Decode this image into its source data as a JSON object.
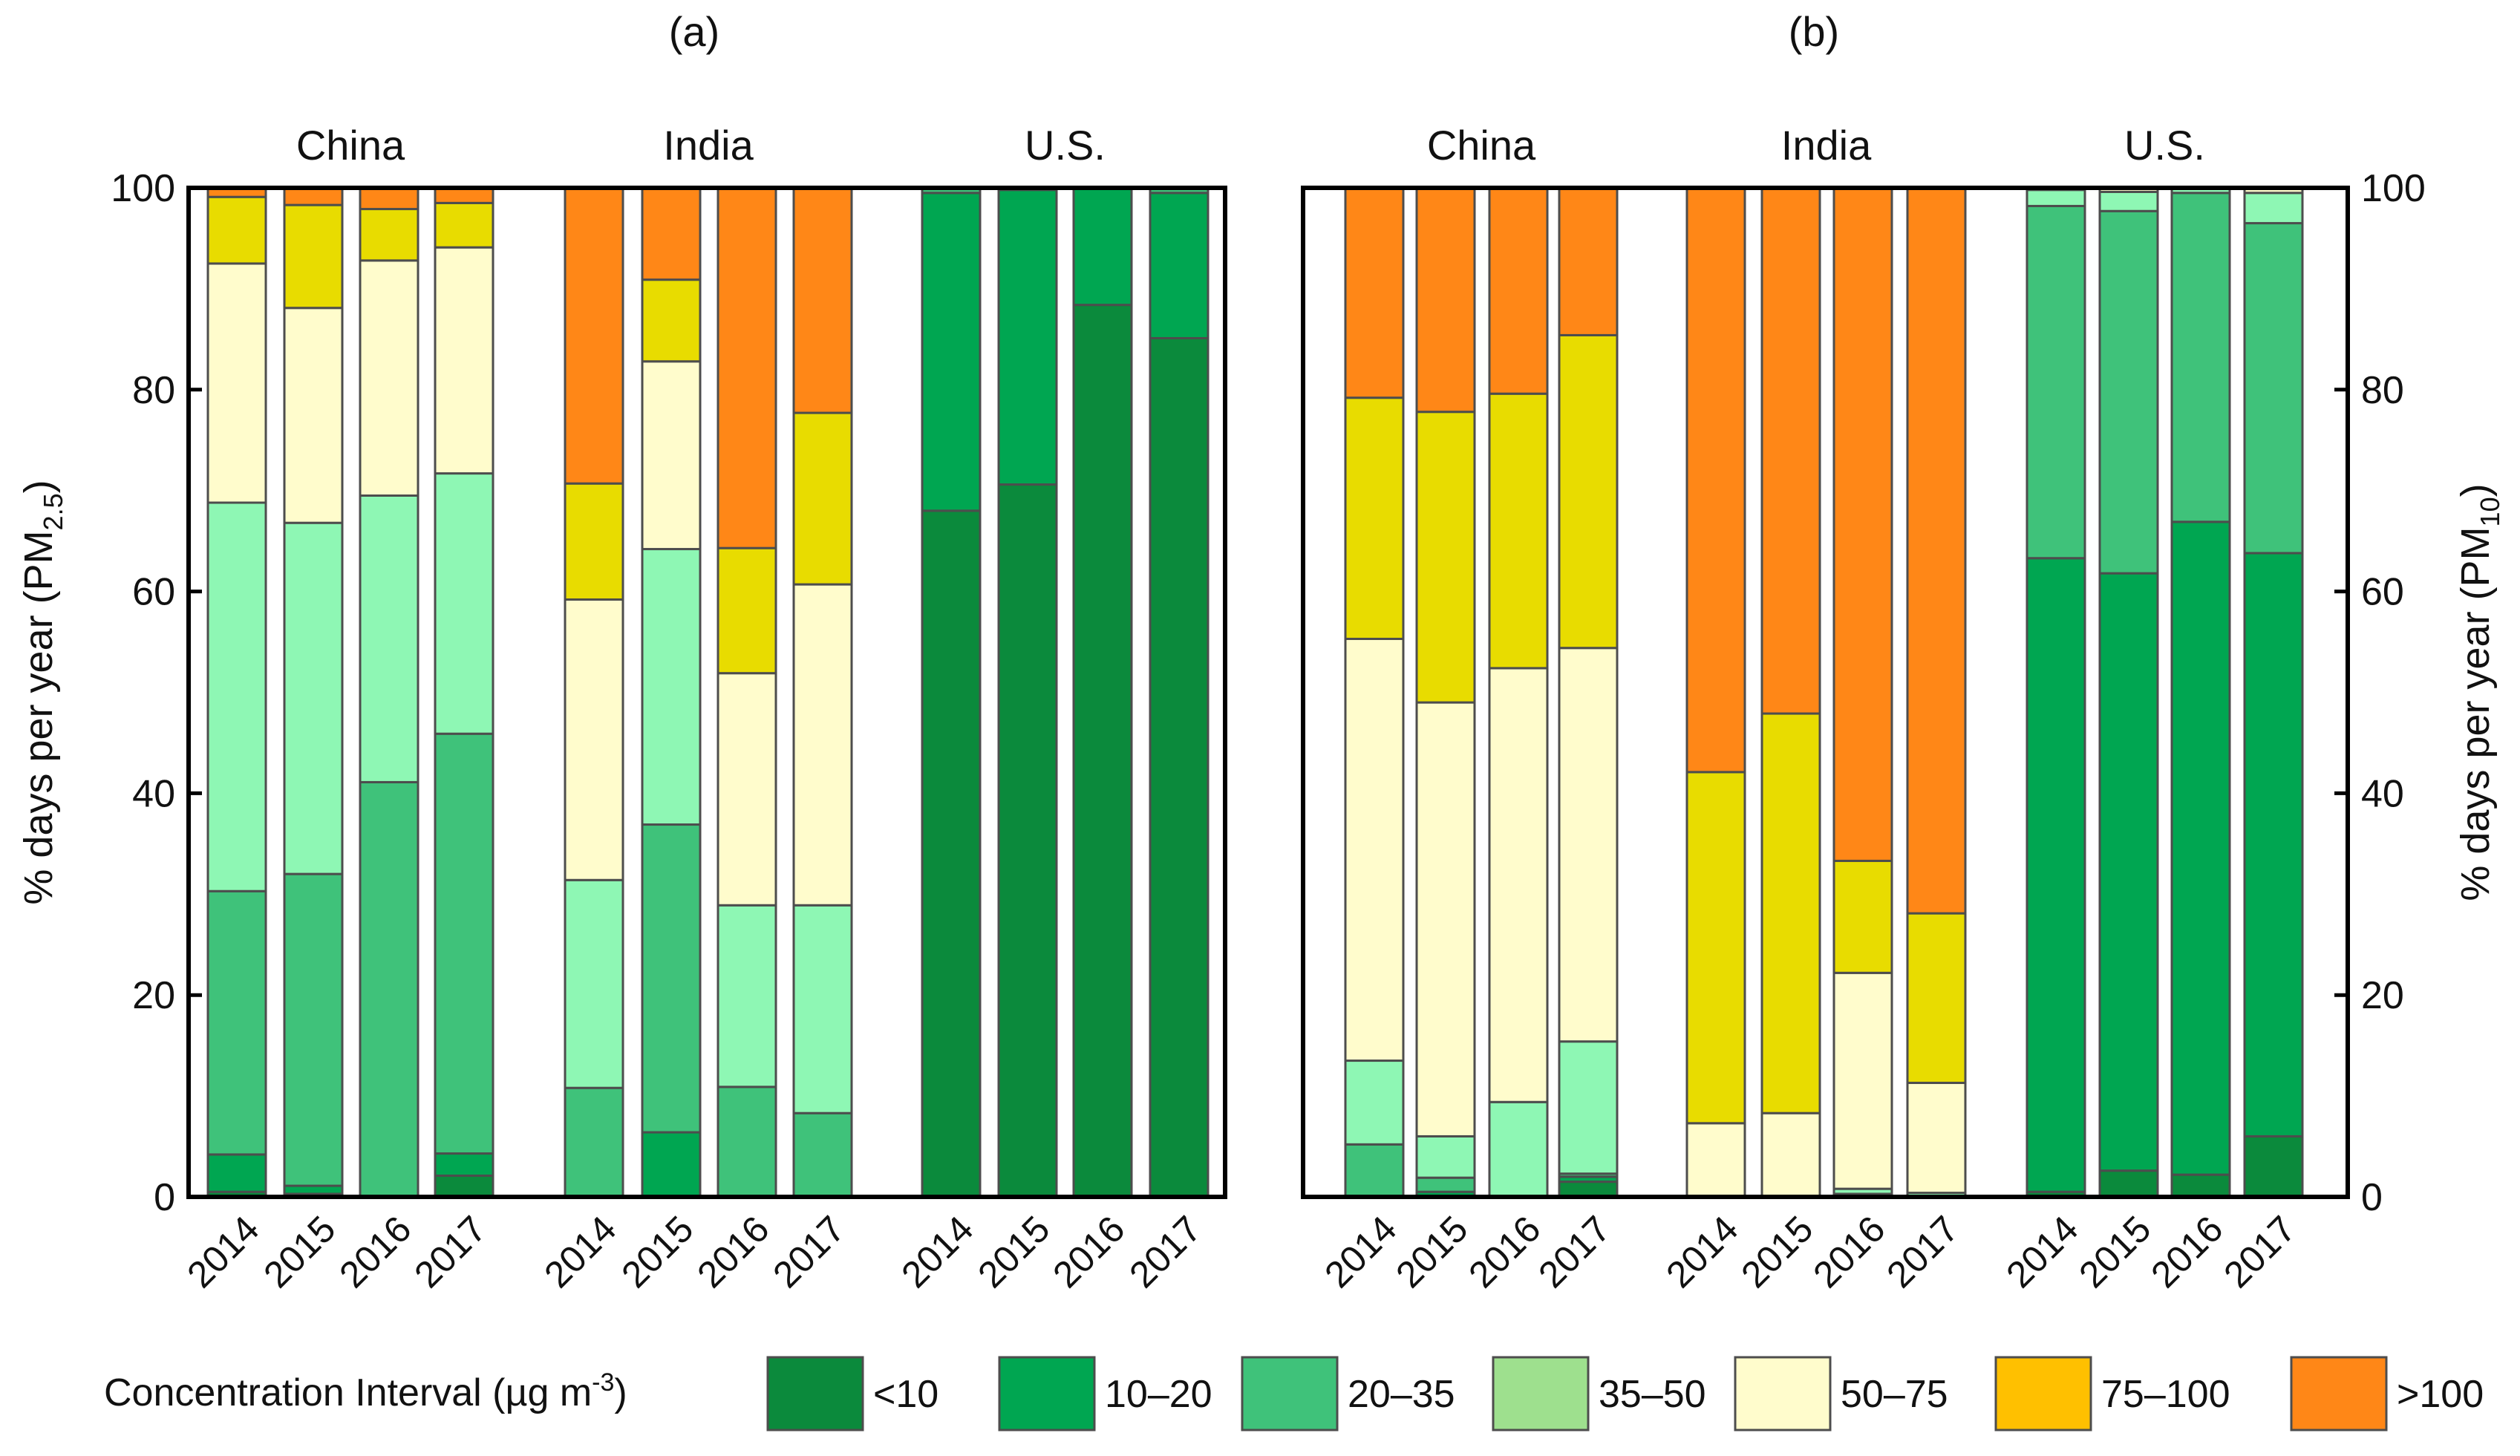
{
  "figure": {
    "legend": {
      "title_main": "Concentration Interval (µg m",
      "title_sup": "-3",
      "title_tail": ")"
    }
  },
  "colors": {
    "<10": "#0b8a3c",
    "10-20": "#00a651",
    "20-35": "#3fc27a",
    "35-50_a": "#8ef7b4",
    "35-50_b": "#8ef7b4",
    "50-75": "#fffccc",
    "75-100": "#e8dc00",
    ">100": "#ff8717"
  },
  "chart_data": [
    {
      "type": "bar",
      "stacked": true,
      "panel_label": "(a)",
      "ylabel_main": "% days per year (PM",
      "ylabel_sub": "2.5",
      "ylabel_tail": ")",
      "ylim": [
        0,
        100
      ],
      "yticks": [
        "0",
        "20",
        "40",
        "60",
        "80",
        "100"
      ],
      "y_axis_side": "left",
      "groups": [
        "China",
        "India",
        "U.S."
      ],
      "categories": [
        "2014",
        "2015",
        "2016",
        "2017"
      ],
      "intervals": [
        "<10",
        "10–20",
        "20–35",
        "35–50",
        "50–75",
        "75–100",
        ">100"
      ],
      "values": {
        "China": [
          [
            0.5,
            3.7,
            26.1,
            38.5,
            23.7,
            6.6,
            0.9
          ],
          [
            0.3,
            0.8,
            30.9,
            34.8,
            21.3,
            10.2,
            1.7
          ],
          [
            0.0,
            0.1,
            41.0,
            28.4,
            23.3,
            5.1,
            2.1
          ],
          [
            2.1,
            2.2,
            41.6,
            25.8,
            22.4,
            4.4,
            1.5
          ]
        ],
        "India": [
          [
            0.0,
            0.0,
            10.8,
            20.6,
            27.8,
            11.5,
            29.3
          ],
          [
            0.0,
            6.4,
            30.5,
            27.3,
            18.6,
            8.1,
            9.1
          ],
          [
            0.0,
            0.0,
            10.9,
            18.0,
            23.0,
            12.4,
            35.7
          ],
          [
            0.0,
            0.0,
            8.3,
            20.6,
            31.8,
            17.0,
            22.3
          ]
        ],
        "U.S.": [
          [
            68.0,
            31.5,
            0.5,
            0.0,
            0.0,
            0.0,
            0.0
          ],
          [
            70.6,
            29.2,
            0.2,
            0.0,
            0.0,
            0.0,
            0.0
          ],
          [
            88.4,
            11.6,
            0.0,
            0.0,
            0.0,
            0.0,
            0.0
          ],
          [
            85.1,
            14.4,
            0.5,
            0.0,
            0.0,
            0.0,
            0.0
          ]
        ]
      }
    },
    {
      "type": "bar",
      "stacked": true,
      "panel_label": "(b)",
      "ylabel_main": "% days per year (PM",
      "ylabel_sub": "10",
      "ylabel_tail": ")",
      "ylim": [
        0,
        100
      ],
      "yticks": [
        "0",
        "20",
        "40",
        "60",
        "80",
        "100"
      ],
      "y_axis_side": "right",
      "groups": [
        "China",
        "India",
        "U.S."
      ],
      "categories": [
        "2014",
        "2015",
        "2016",
        "2017"
      ],
      "intervals": [
        "<10",
        "10–20",
        "20–35",
        "35–50",
        "50–75",
        "75–100",
        ">100"
      ],
      "values": {
        "China": [
          [
            0.0,
            0.0,
            5.2,
            8.3,
            41.8,
            23.9,
            20.8
          ],
          [
            0.0,
            0.5,
            1.4,
            4.1,
            43.0,
            28.8,
            22.2
          ],
          [
            0.0,
            0.0,
            0.0,
            9.4,
            43.0,
            27.2,
            20.4
          ],
          [
            1.5,
            0.5,
            0.3,
            13.1,
            39.0,
            31.0,
            14.6
          ]
        ],
        "India": [
          [
            0.0,
            0.0,
            0.0,
            0.0,
            7.3,
            34.8,
            57.9
          ],
          [
            0.0,
            0.0,
            0.0,
            0.0,
            8.3,
            39.6,
            52.1
          ],
          [
            0.0,
            0.0,
            0.3,
            0.5,
            21.4,
            11.1,
            66.7
          ],
          [
            0.0,
            0.0,
            0.0,
            0.4,
            10.9,
            16.8,
            71.9
          ]
        ],
        "U.S.": [
          [
            0.5,
            62.8,
            34.9,
            1.6,
            0.2,
            0.0,
            0.0
          ],
          [
            2.6,
            59.2,
            35.9,
            1.9,
            0.4,
            0.0,
            0.0
          ],
          [
            2.2,
            64.7,
            32.6,
            0.5,
            0.0,
            0.0,
            0.0
          ],
          [
            6.0,
            57.8,
            32.7,
            3.0,
            0.5,
            0.0,
            0.0
          ]
        ]
      }
    }
  ],
  "legend_entries": [
    {
      "key": "<10",
      "label": "<10"
    },
    {
      "key": "10-20",
      "label": "10–20"
    },
    {
      "key": "20-35",
      "label": "20–35"
    },
    {
      "key": "35-50_b",
      "label": "35–50",
      "alt_color": "#9ee08e"
    },
    {
      "key": "50-75",
      "label": "50–75"
    },
    {
      "key": "75-100",
      "label": "75–100",
      "alt_color": "#ffc000"
    },
    {
      "key": ">100",
      "label": ">100"
    }
  ]
}
